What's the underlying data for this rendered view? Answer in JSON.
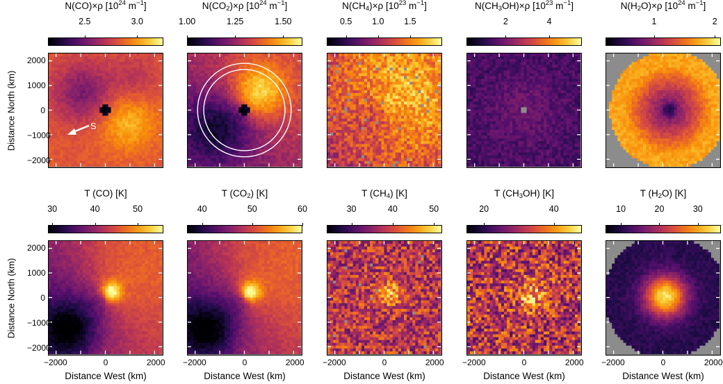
{
  "colors": {
    "colormap": "inferno",
    "missing_pixel": "#8c8c8c",
    "annotation": "#ffffff"
  },
  "axes": {
    "ylabel": "Distance North (km)",
    "xlabel": "Distance West (km)",
    "yticks": [
      "2000",
      "1000",
      "0",
      "−1000",
      "−2000"
    ],
    "xticks": [
      "−2000",
      "0",
      "2000"
    ],
    "range_km": [
      -2300,
      2300
    ]
  },
  "chart_data": [
    {
      "type": "heatmap",
      "row": 1,
      "col": 1,
      "title_html": "N(CO)×ρ [10<sup>24</sup> m<sup>−1</sup>]",
      "title": "N(CO)×ρ [10^24 m^−1]",
      "colorbar": {
        "range": [
          2.15,
          3.25
        ],
        "ticks": [
          2.5,
          3.0
        ],
        "tick_labels": [
          "2.5",
          "3.0"
        ]
      },
      "annotation": {
        "text": "S"
      }
    },
    {
      "type": "heatmap",
      "row": 1,
      "col": 2,
      "title_html": "N(CO<sub>2</sub>)×ρ [10<sup>24</sup> m<sup>−1</sup>]",
      "title": "N(CO2)×ρ [10^24 m^−1]",
      "colorbar": {
        "range": [
          1.0,
          1.6
        ],
        "ticks": [
          1.0,
          1.25,
          1.5
        ],
        "tick_labels": [
          "1.00",
          "1.25",
          "1.50"
        ]
      },
      "circles_km": [
        1900,
        1650
      ]
    },
    {
      "type": "heatmap",
      "row": 1,
      "col": 3,
      "title_html": "N(CH<sub>4</sub>)×ρ [10<sup>23</sup> m<sup>−1</sup>]",
      "title": "N(CH4)×ρ [10^23 m^−1]",
      "colorbar": {
        "range": [
          0.2,
          2.0
        ],
        "ticks": [
          0.5,
          1.0,
          1.5
        ],
        "tick_labels": [
          "0.5",
          "1.0",
          "1.5"
        ]
      }
    },
    {
      "type": "heatmap",
      "row": 1,
      "col": 4,
      "title_html": "N(CH<sub>3</sub>OH)×ρ [10<sup>23</sup> m<sup>−1</sup>]",
      "title": "N(CH3OH)×ρ [10^23 m^−1]",
      "colorbar": {
        "range": [
          0.2,
          5.5
        ],
        "ticks": [
          2,
          4
        ],
        "tick_labels": [
          "2",
          "4"
        ]
      }
    },
    {
      "type": "heatmap",
      "row": 1,
      "col": 5,
      "title_html": "N(H<sub>2</sub>O)×ρ [10<sup>24</sup> m<sup>−1</sup>]",
      "title": "N(H2O)×ρ [10^24 m^−1]",
      "colorbar": {
        "range": [
          0.2,
          2.1
        ],
        "ticks": [
          1,
          2
        ],
        "tick_labels": [
          "1",
          "2"
        ]
      }
    },
    {
      "type": "heatmap",
      "row": 2,
      "col": 1,
      "title_html": "T (CO) [K]",
      "title": "T (CO) [K]",
      "colorbar": {
        "range": [
          29,
          56
        ],
        "ticks": [
          30,
          40,
          50
        ],
        "tick_labels": [
          "30",
          "40",
          "50"
        ]
      }
    },
    {
      "type": "heatmap",
      "row": 2,
      "col": 2,
      "title_html": "T (CO<sub>2</sub>) [K]",
      "title": "T (CO2) [K]",
      "colorbar": {
        "range": [
          37,
          60
        ],
        "ticks": [
          40,
          50,
          60
        ],
        "tick_labels": [
          "40",
          "50",
          "60"
        ]
      }
    },
    {
      "type": "heatmap",
      "row": 2,
      "col": 3,
      "title_html": "T (CH<sub>4</sub>) [K]",
      "title": "T (CH4) [K]",
      "colorbar": {
        "range": [
          24,
          52
        ],
        "ticks": [
          30,
          40,
          50
        ],
        "tick_labels": [
          "30",
          "40",
          "50"
        ]
      }
    },
    {
      "type": "heatmap",
      "row": 2,
      "col": 4,
      "title_html": "T (CH<sub>3</sub>OH) [K]",
      "title": "T (CH3OH) [K]",
      "colorbar": {
        "range": [
          15,
          48
        ],
        "ticks": [
          20,
          40
        ],
        "tick_labels": [
          "20",
          "40"
        ]
      }
    },
    {
      "type": "heatmap",
      "row": 2,
      "col": 5,
      "title_html": "T (H<sub>2</sub>O) [K]",
      "title": "T (H2O) [K]",
      "colorbar": {
        "range": [
          6,
          36
        ],
        "ticks": [
          10,
          20,
          30
        ],
        "tick_labels": [
          "10",
          "20",
          "30"
        ]
      }
    }
  ]
}
